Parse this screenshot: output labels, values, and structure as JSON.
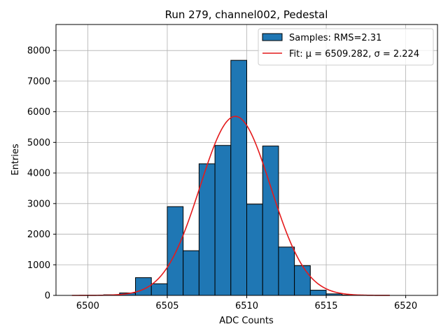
{
  "chart_data": {
    "type": "bar",
    "title": "Run 279, channel002, Pedestal",
    "xlabel": "ADC Counts",
    "ylabel": "Entries",
    "xlim": [
      6498,
      6522
    ],
    "ylim": [
      0,
      8850
    ],
    "xticks": [
      6500,
      6505,
      6510,
      6515,
      6520
    ],
    "yticks": [
      0,
      1000,
      2000,
      3000,
      4000,
      5000,
      6000,
      7000,
      8000
    ],
    "grid": true,
    "legend_position": "top-right",
    "histogram": {
      "name": "Samples: RMS=2.31",
      "color": "#1f77b4",
      "edge_color": "#000000",
      "bins": [
        {
          "start": 6501,
          "end": 6502,
          "value": 20
        },
        {
          "start": 6502,
          "end": 6503,
          "value": 80
        },
        {
          "start": 6503,
          "end": 6504,
          "value": 580
        },
        {
          "start": 6504,
          "end": 6505,
          "value": 380
        },
        {
          "start": 6505,
          "end": 6506,
          "value": 2900
        },
        {
          "start": 6506,
          "end": 6507,
          "value": 1460
        },
        {
          "start": 6507,
          "end": 6508,
          "value": 4300
        },
        {
          "start": 6508,
          "end": 6509,
          "value": 4900
        },
        {
          "start": 6509,
          "end": 6510,
          "value": 7680
        },
        {
          "start": 6510,
          "end": 6511,
          "value": 2980
        },
        {
          "start": 6511,
          "end": 6512,
          "value": 4880
        },
        {
          "start": 6512,
          "end": 6513,
          "value": 1580
        },
        {
          "start": 6513,
          "end": 6514,
          "value": 970
        },
        {
          "start": 6514,
          "end": 6515,
          "value": 170
        },
        {
          "start": 6515,
          "end": 6516,
          "value": 50
        },
        {
          "start": 6516,
          "end": 6517,
          "value": 10
        }
      ]
    },
    "fit": {
      "name": "Fit: μ = 6509.282, σ = 2.224",
      "color": "#e41a1c",
      "mu": 6509.282,
      "sigma": 2.224,
      "amplitude": 5850,
      "x_range": [
        6499,
        6519
      ]
    }
  }
}
